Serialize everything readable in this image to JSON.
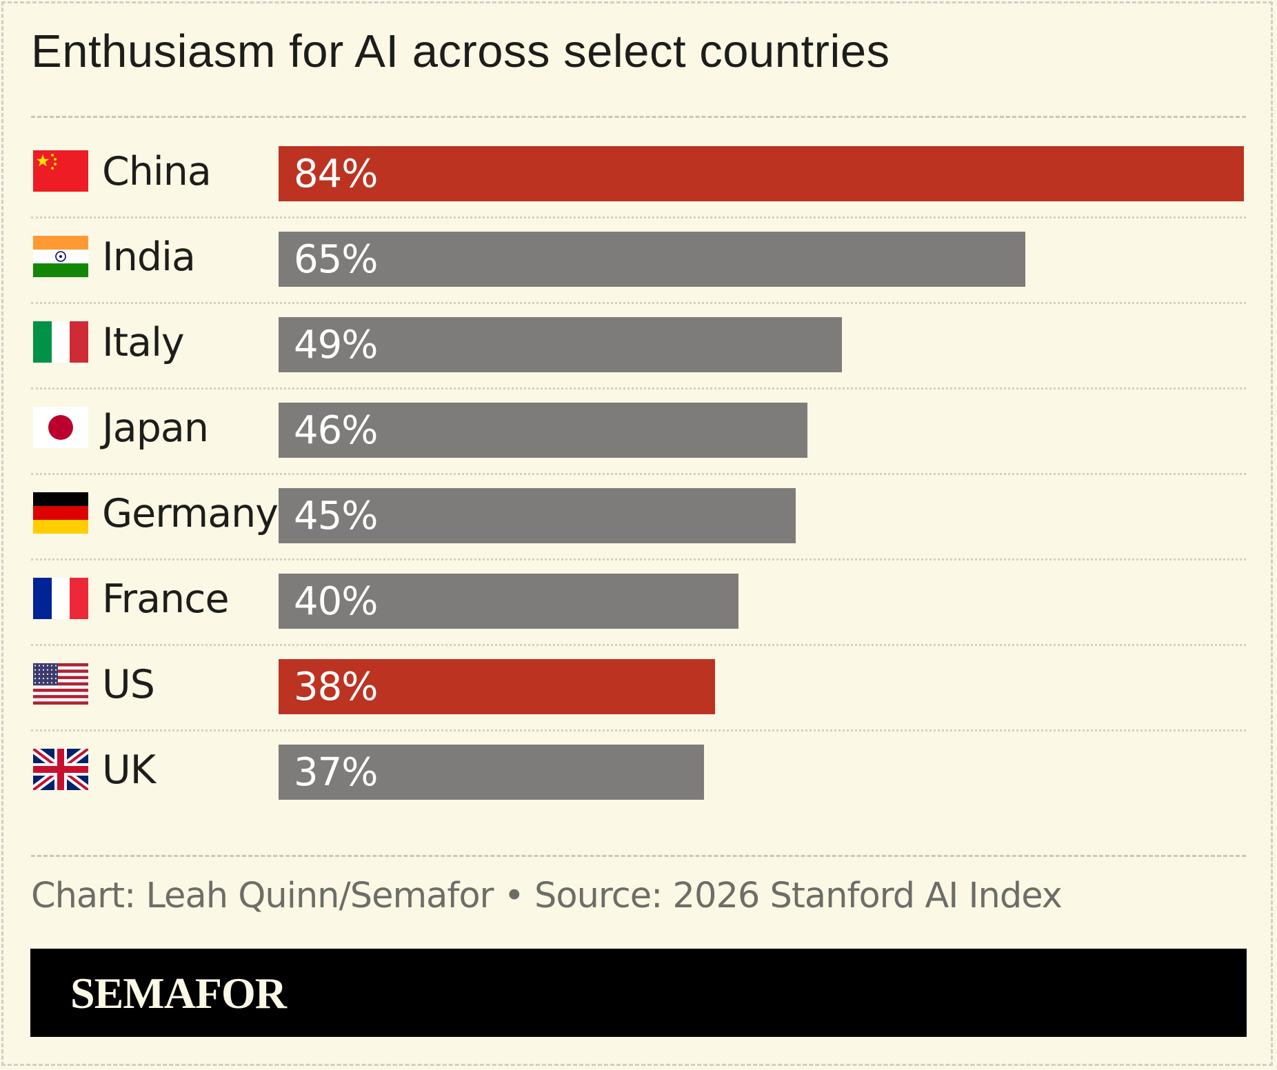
{
  "title": "Enthusiasm for AI across select countries",
  "credit": "Chart: Leah Quinn/Semafor • Source: 2026 Stanford AI Index",
  "brand": "SEMAFOR",
  "colors": {
    "highlight": "#bc3322",
    "default": "#7d7c7a",
    "background": "#fbf8e5"
  },
  "chart_data": {
    "type": "bar",
    "orientation": "horizontal",
    "title": "Enthusiasm for AI across select countries",
    "categories": [
      "China",
      "India",
      "Italy",
      "Japan",
      "Germany",
      "France",
      "US",
      "UK"
    ],
    "values": [
      84,
      65,
      49,
      46,
      45,
      40,
      38,
      37
    ],
    "labels": [
      "84%",
      "65%",
      "49%",
      "46%",
      "45%",
      "40%",
      "38%",
      "37%"
    ],
    "highlighted": [
      "China",
      "US"
    ],
    "flags": [
      "china-flag-icon",
      "india-flag-icon",
      "italy-flag-icon",
      "japan-flag-icon",
      "germany-flag-icon",
      "france-flag-icon",
      "us-flag-icon",
      "uk-flag-icon"
    ],
    "xlim": [
      0,
      84
    ],
    "grid": false,
    "legend": "none"
  }
}
